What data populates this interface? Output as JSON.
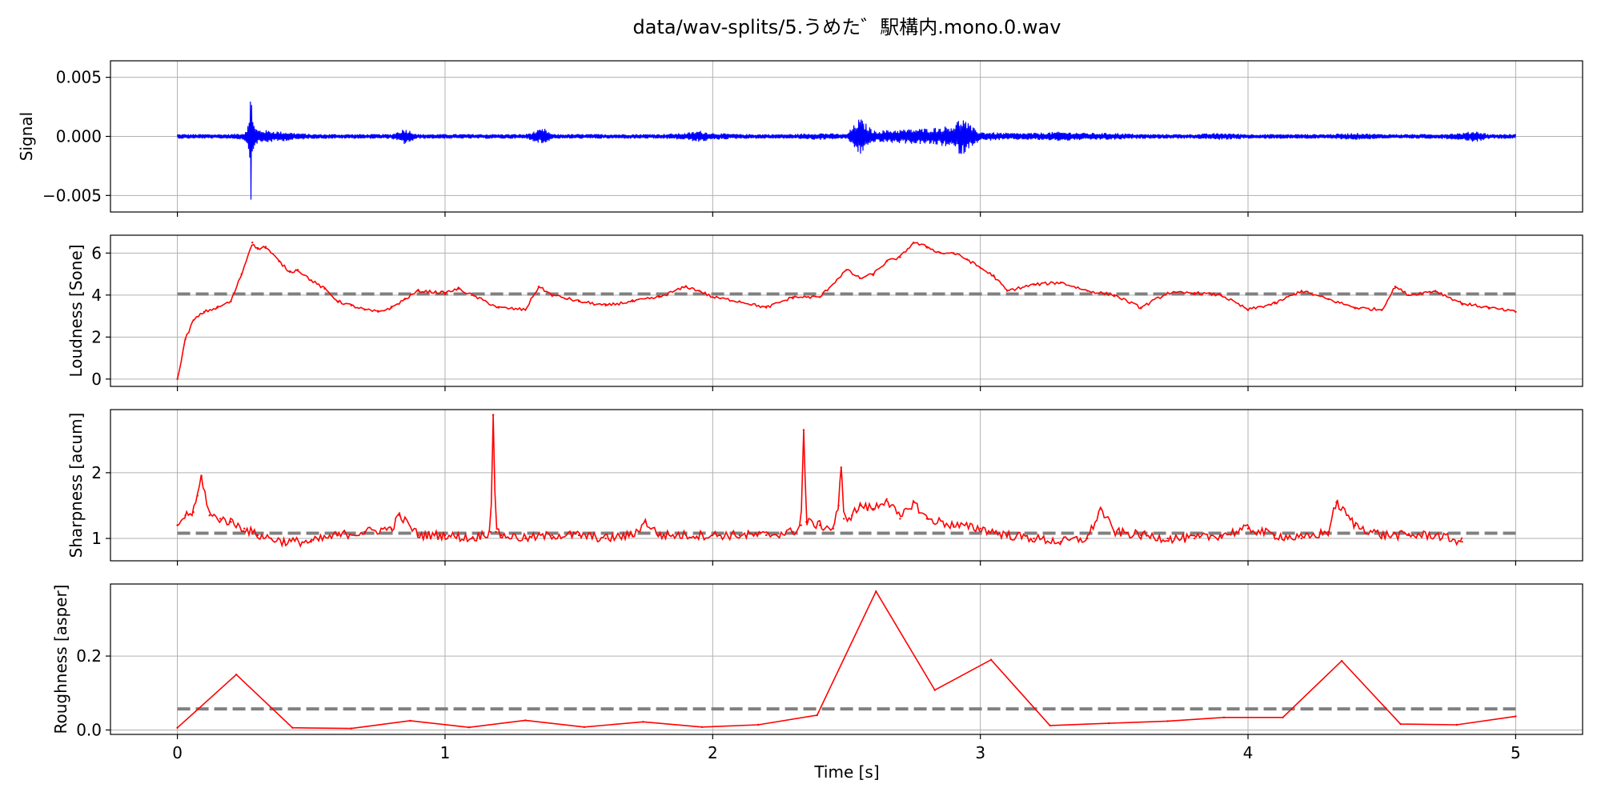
{
  "chart_data": {
    "type": "line",
    "title": "data/wav-splits/5.うめた゛駅構内.mono.0.wav",
    "xlabel": "Time [s]",
    "xlim": [
      -0.25,
      5.25
    ],
    "xticks": [
      0,
      1,
      2,
      3,
      4,
      5
    ],
    "xtick_labels": [
      "0",
      "1",
      "2",
      "3",
      "4",
      "5"
    ],
    "grid": true,
    "panels": [
      {
        "id": "signal",
        "ylabel": "Signal",
        "ylim": [
          -0.0064,
          0.0064
        ],
        "yticks": [
          -0.005,
          0,
          0.005
        ],
        "ytick_labels": [
          "−0.005",
          "0.000",
          "0.005"
        ],
        "series": [
          {
            "kind": "envelope",
            "color": "#0000ff",
            "x": [
              0,
              0.1,
              0.2,
              0.25,
              0.27,
              0.275,
              0.28,
              0.285,
              0.29,
              0.3,
              0.35,
              0.45,
              0.5,
              0.6,
              0.7,
              0.8,
              0.85,
              0.9,
              1.0,
              1.1,
              1.2,
              1.3,
              1.37,
              1.4,
              1.5,
              1.6,
              1.7,
              1.8,
              1.9,
              1.95,
              2.0,
              2.1,
              2.2,
              2.3,
              2.4,
              2.5,
              2.55,
              2.6,
              2.7,
              2.8,
              2.85,
              2.9,
              2.93,
              2.97,
              3.0,
              3.1,
              3.2,
              3.3,
              3.4,
              3.5,
              3.6,
              3.7,
              3.8,
              3.9,
              4.0,
              4.1,
              4.2,
              4.3,
              4.4,
              4.5,
              4.6,
              4.7,
              4.8,
              4.85,
              4.9,
              5.0
            ],
            "amp": [
              0.0002,
              0.0002,
              0.0002,
              0.0003,
              0.0014,
              0.0058,
              0.0025,
              0.0012,
              0.0008,
              0.0006,
              0.0005,
              0.0003,
              0.0002,
              0.0002,
              0.0002,
              0.0002,
              0.0007,
              0.0002,
              0.0002,
              0.0002,
              0.0002,
              0.0002,
              0.0007,
              0.0002,
              0.0002,
              0.0002,
              0.0002,
              0.0002,
              0.0003,
              0.0005,
              0.0003,
              0.0002,
              0.0002,
              0.0002,
              0.0003,
              0.0002,
              0.0016,
              0.0005,
              0.0006,
              0.0007,
              0.0008,
              0.001,
              0.0017,
              0.0008,
              0.0004,
              0.0003,
              0.0003,
              0.0004,
              0.0003,
              0.0003,
              0.0002,
              0.0002,
              0.0002,
              0.0003,
              0.0002,
              0.0002,
              0.0002,
              0.0002,
              0.0003,
              0.0002,
              0.0002,
              0.0002,
              0.0003,
              0.0005,
              0.0002,
              0.0002
            ]
          }
        ]
      },
      {
        "id": "loudness",
        "ylabel": "Loudness [Sone]",
        "ylim": [
          -0.35,
          6.85
        ],
        "yticks": [
          0,
          2,
          4,
          6
        ],
        "ytick_labels": [
          "0",
          "2",
          "4",
          "6"
        ],
        "reference": 4.05,
        "series": [
          {
            "color": "#ff0000",
            "x": [
              0,
              0.03,
              0.06,
              0.1,
              0.15,
              0.2,
              0.24,
              0.28,
              0.3,
              0.33,
              0.38,
              0.42,
              0.45,
              0.5,
              0.55,
              0.6,
              0.65,
              0.7,
              0.75,
              0.8,
              0.85,
              0.9,
              1.0,
              1.05,
              1.1,
              1.2,
              1.3,
              1.35,
              1.4,
              1.5,
              1.6,
              1.7,
              1.8,
              1.9,
              1.95,
              2.0,
              2.1,
              2.2,
              2.3,
              2.4,
              2.5,
              2.55,
              2.6,
              2.65,
              2.7,
              2.75,
              2.8,
              2.85,
              2.9,
              2.95,
              3.0,
              3.05,
              3.1,
              3.2,
              3.3,
              3.4,
              3.5,
              3.6,
              3.7,
              3.8,
              3.9,
              4.0,
              4.1,
              4.2,
              4.3,
              4.4,
              4.5,
              4.55,
              4.6,
              4.7,
              4.8,
              4.9,
              5.0
            ],
            "y": [
              0,
              1.9,
              2.8,
              3.2,
              3.4,
              3.7,
              5.0,
              6.5,
              6.2,
              6.3,
              5.6,
              5.1,
              5.2,
              4.7,
              4.3,
              3.7,
              3.5,
              3.3,
              3.2,
              3.4,
              3.8,
              4.2,
              4.1,
              4.3,
              4.0,
              3.4,
              3.3,
              4.4,
              4.0,
              3.7,
              3.5,
              3.7,
              3.9,
              4.4,
              4.2,
              3.9,
              3.7,
              3.4,
              3.9,
              3.9,
              5.2,
              4.8,
              5.0,
              5.6,
              5.8,
              6.5,
              6.3,
              6.0,
              6.0,
              5.7,
              5.3,
              4.9,
              4.2,
              4.5,
              4.6,
              4.2,
              4.0,
              3.4,
              4.1,
              4.1,
              4.0,
              3.3,
              3.6,
              4.2,
              3.8,
              3.4,
              3.3,
              4.4,
              4.0,
              4.2,
              3.6,
              3.4,
              3.2
            ]
          }
        ]
      },
      {
        "id": "sharpness",
        "ylabel": "Sharpness [acum]",
        "ylim": [
          0.66,
          2.96
        ],
        "yticks": [
          1,
          2
        ],
        "ytick_labels": [
          "1",
          "2"
        ],
        "reference": 1.08,
        "series": [
          {
            "color": "#ff0000",
            "x": [
              0,
              0.03,
              0.06,
              0.075,
              0.09,
              0.12,
              0.16,
              0.2,
              0.25,
              0.3,
              0.35,
              0.4,
              0.5,
              0.6,
              0.7,
              0.8,
              0.83,
              0.9,
              1.0,
              1.1,
              1.17,
              1.18,
              1.19,
              1.21,
              1.3,
              1.4,
              1.5,
              1.6,
              1.7,
              1.75,
              1.8,
              1.9,
              2.0,
              2.1,
              2.2,
              2.3,
              2.33,
              2.34,
              2.35,
              2.4,
              2.45,
              2.47,
              2.48,
              2.49,
              2.52,
              2.55,
              2.6,
              2.65,
              2.7,
              2.75,
              2.8,
              2.9,
              3.0,
              3.1,
              3.2,
              3.3,
              3.4,
              3.45,
              3.5,
              3.6,
              3.7,
              3.8,
              3.9,
              4.0,
              4.1,
              4.2,
              4.3,
              4.33,
              4.4,
              4.5,
              4.6,
              4.7,
              4.8
            ],
            "y": [
              1.2,
              1.35,
              1.4,
              1.65,
              1.95,
              1.35,
              1.3,
              1.25,
              1.15,
              1.05,
              1.0,
              0.95,
              0.95,
              1.05,
              1.1,
              1.15,
              1.35,
              1.05,
              1.05,
              1.0,
              1.1,
              2.88,
              1.1,
              1.05,
              1.0,
              1.05,
              1.05,
              1.0,
              1.05,
              1.25,
              1.05,
              1.05,
              1.05,
              1.05,
              1.05,
              1.1,
              1.2,
              2.65,
              1.25,
              1.2,
              1.15,
              1.5,
              2.08,
              1.3,
              1.35,
              1.5,
              1.45,
              1.6,
              1.3,
              1.55,
              1.3,
              1.2,
              1.15,
              1.05,
              1.0,
              0.95,
              1.0,
              1.45,
              1.1,
              1.05,
              1.0,
              1.0,
              1.05,
              1.15,
              1.05,
              1.0,
              1.1,
              1.55,
              1.2,
              1.05,
              1.05,
              1.05,
              0.95
            ]
          }
        ]
      },
      {
        "id": "roughness",
        "ylabel": "Roughness [asper]",
        "ylim": [
          -0.012,
          0.395
        ],
        "yticks": [
          0,
          0.2
        ],
        "ytick_labels": [
          "0.0",
          "0.2"
        ],
        "reference": 0.057,
        "series": [
          {
            "color": "#ff0000",
            "x": [
              0,
              0.22,
              0.43,
              0.65,
              0.87,
              1.09,
              1.3,
              1.52,
              1.74,
              1.96,
              2.17,
              2.39,
              2.61,
              2.83,
              3.04,
              3.26,
              3.48,
              3.7,
              3.91,
              4.13,
              4.35,
              4.57,
              4.78,
              5.0
            ],
            "y": [
              0.006,
              0.15,
              0.006,
              0.004,
              0.025,
              0.007,
              0.026,
              0.008,
              0.022,
              0.008,
              0.014,
              0.04,
              0.375,
              0.108,
              0.19,
              0.012,
              0.018,
              0.024,
              0.034,
              0.034,
              0.187,
              0.016,
              0.014,
              0.037
            ]
          }
        ]
      }
    ]
  }
}
